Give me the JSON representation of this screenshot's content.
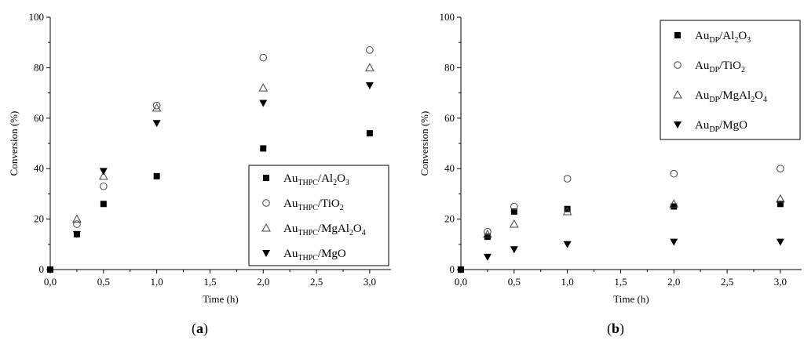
{
  "chart_data": [
    {
      "type": "scatter",
      "panel_label": "a",
      "xlabel": "Time (h)",
      "ylabel": "Conversion (%)",
      "xlim": [
        0,
        3.2
      ],
      "ylim": [
        0,
        100
      ],
      "x_ticks": [
        "0,0",
        "0,5",
        "1,0",
        "1,5",
        "2,0",
        "2,5",
        "3,0"
      ],
      "x_tick_values": [
        0,
        0.5,
        1,
        1.5,
        2,
        2.5,
        3
      ],
      "y_ticks": [
        "0",
        "20",
        "40",
        "60",
        "80",
        "100"
      ],
      "y_tick_values": [
        0,
        20,
        40,
        60,
        80,
        100
      ],
      "legend_placement": "bottom-right",
      "series": [
        {
          "name": "Au_THPC/Al2O3",
          "label_main": "Au",
          "label_sub": "THPC",
          "label_tail": [
            [
              "/Al",
              ""
            ],
            [
              "2",
              "sub"
            ],
            [
              "O",
              ""
            ],
            [
              "3",
              "sub"
            ]
          ],
          "marker": "square-filled",
          "x": [
            0,
            0.25,
            0.5,
            1,
            2,
            3
          ],
          "y": [
            0,
            14,
            26,
            37,
            48,
            54
          ]
        },
        {
          "name": "Au_THPC/TiO2",
          "label_main": "Au",
          "label_sub": "THPC",
          "label_tail": [
            [
              "/TiO",
              ""
            ],
            [
              "2",
              "sub"
            ]
          ],
          "marker": "circle-open",
          "x": [
            0.25,
            0.5,
            1,
            2,
            3
          ],
          "y": [
            18,
            33,
            65,
            84,
            87
          ]
        },
        {
          "name": "Au_THPC/MgAl2O4",
          "label_main": "Au",
          "label_sub": "THPC",
          "label_tail": [
            [
              "/MgAl",
              ""
            ],
            [
              "2",
              "sub"
            ],
            [
              "O",
              ""
            ],
            [
              "4",
              "sub"
            ]
          ],
          "marker": "triangle-up-open",
          "x": [
            0.25,
            0.5,
            1,
            2,
            3
          ],
          "y": [
            20,
            37,
            64,
            72,
            80
          ]
        },
        {
          "name": "Au_THPC/MgO",
          "label_main": "Au",
          "label_sub": "THPC",
          "label_tail": [
            [
              "/MgO",
              ""
            ]
          ],
          "marker": "triangle-down-filled",
          "x": [
            0.25,
            0.5,
            1,
            2,
            3
          ],
          "y": [
            14,
            39,
            58,
            66,
            73
          ]
        }
      ]
    },
    {
      "type": "scatter",
      "panel_label": "b",
      "xlabel": "Time (h)",
      "ylabel": "Conversion (%)",
      "xlim": [
        0,
        3.2
      ],
      "ylim": [
        0,
        100
      ],
      "x_ticks": [
        "0,0",
        "0,5",
        "1,0",
        "1,5",
        "2,0",
        "2,5",
        "3,0"
      ],
      "x_tick_values": [
        0,
        0.5,
        1,
        1.5,
        2,
        2.5,
        3
      ],
      "y_ticks": [
        "0",
        "20",
        "40",
        "60",
        "80",
        "100"
      ],
      "y_tick_values": [
        0,
        20,
        40,
        60,
        80,
        100
      ],
      "legend_placement": "top-right",
      "series": [
        {
          "name": "Au_DP/Al2O3",
          "label_main": "Au",
          "label_sub": "DP",
          "label_tail": [
            [
              "/Al",
              ""
            ],
            [
              "2",
              "sub"
            ],
            [
              "O",
              ""
            ],
            [
              "3",
              "sub"
            ]
          ],
          "marker": "square-filled",
          "x": [
            0,
            0.25,
            0.5,
            1,
            2,
            3
          ],
          "y": [
            0,
            13,
            23,
            24,
            25,
            26
          ]
        },
        {
          "name": "Au_DP/TiO2",
          "label_main": "Au",
          "label_sub": "DP",
          "label_tail": [
            [
              "/TiO",
              ""
            ],
            [
              "2",
              "sub"
            ]
          ],
          "marker": "circle-open",
          "x": [
            0.25,
            0.5,
            1,
            2,
            3
          ],
          "y": [
            15,
            25,
            36,
            38,
            40
          ]
        },
        {
          "name": "Au_DP/MgAl2O4",
          "label_main": "Au",
          "label_sub": "DP",
          "label_tail": [
            [
              "/MgAl",
              ""
            ],
            [
              "2",
              "sub"
            ],
            [
              "O",
              ""
            ],
            [
              "4",
              "sub"
            ]
          ],
          "marker": "triangle-up-open",
          "x": [
            0.25,
            0.5,
            1,
            2,
            3
          ],
          "y": [
            14,
            18,
            23,
            26,
            28
          ]
        },
        {
          "name": "Au_DP/MgO",
          "label_main": "Au",
          "label_sub": "DP",
          "label_tail": [
            [
              "/MgO",
              ""
            ]
          ],
          "marker": "triangle-down-filled",
          "x": [
            0.25,
            0.5,
            1,
            2,
            3
          ],
          "y": [
            5,
            8,
            10,
            11,
            11
          ]
        }
      ]
    }
  ]
}
